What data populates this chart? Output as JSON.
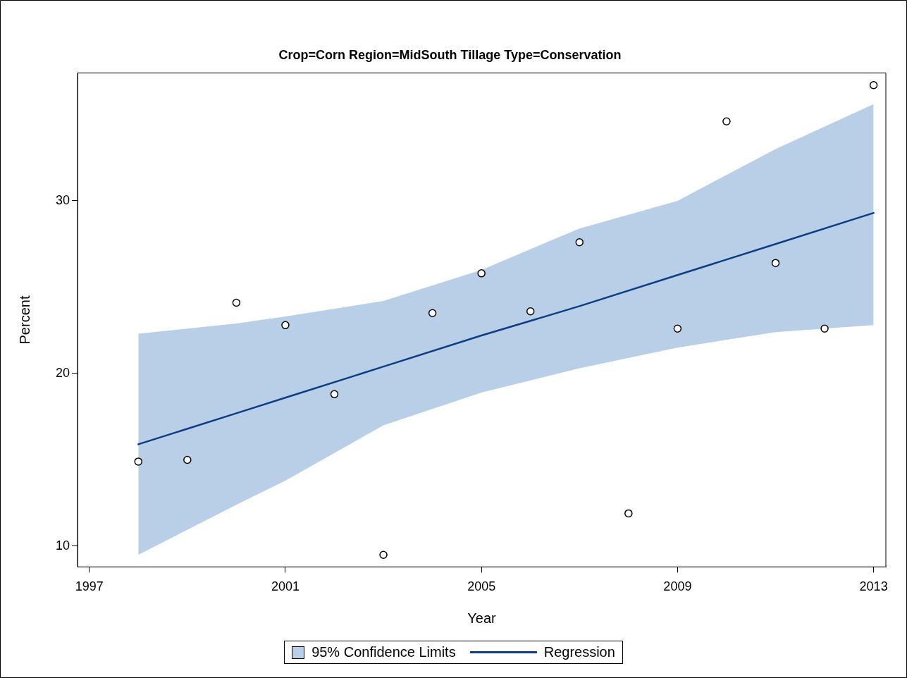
{
  "chart_data": {
    "type": "scatter",
    "title": "Crop=Corn Region=MidSouth Tillage Type=Conservation",
    "xlabel": "Year",
    "ylabel": "Percent",
    "xlim": [
      1996.76,
      2013.25
    ],
    "xticks": [
      1997,
      2001,
      2005,
      2009,
      2013
    ],
    "ylim": [
      8.8,
      37.4
    ],
    "yticks": [
      10,
      20,
      30
    ],
    "grid": false,
    "legend": "bottom",
    "marker": "circle",
    "annotations": [
      "95% Confidence Limits"
    ],
    "series": [
      {
        "type": "line",
        "name": "Regression",
        "color": "#0d3d85",
        "line_style": "solid",
        "marker": "none",
        "x": [
          1998,
          2000,
          2001,
          2003,
          2005,
          2007,
          2009,
          2011,
          2013
        ],
        "values": [
          15.9,
          17.7,
          18.6,
          20.4,
          22.2,
          23.9,
          25.7,
          27.5,
          29.3
        ],
        "lower": [
          9.5,
          12.4,
          13.8,
          17.0,
          18.9,
          20.3,
          21.5,
          22.4,
          22.8
        ],
        "upper": [
          22.3,
          22.9,
          23.3,
          24.2,
          26.0,
          28.4,
          30.0,
          33.0,
          35.6
        ]
      },
      {
        "color": "#000000",
        "x": [
          1998,
          1999,
          2000,
          2001,
          2002,
          2003,
          2004,
          2005,
          2006,
          2007,
          2008,
          2009,
          2010,
          2011,
          2012,
          2013
        ],
        "values": [
          14.9,
          15.0,
          24.1,
          22.8,
          18.8,
          9.5,
          23.5,
          25.8,
          23.6,
          27.6,
          11.9,
          22.6,
          34.6,
          26.4,
          22.6,
          36.7
        ]
      }
    ]
  }
}
